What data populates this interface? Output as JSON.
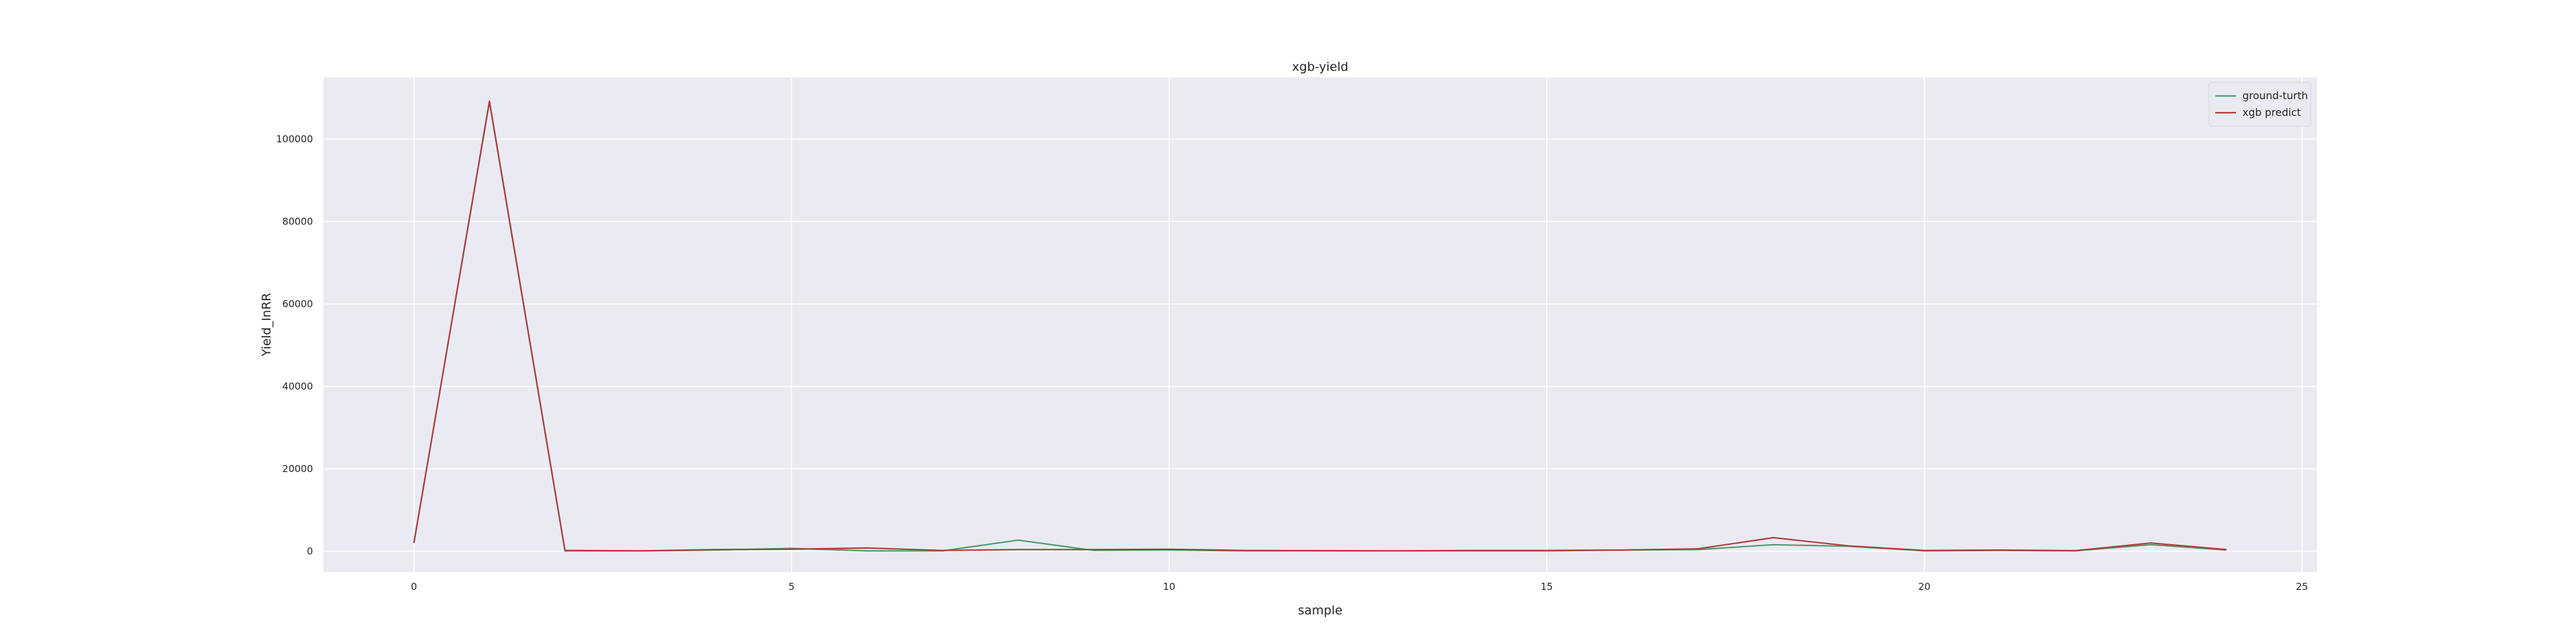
{
  "chart_data": {
    "type": "line",
    "title": "xgb-yield",
    "xlabel": "sample",
    "ylabel": "Yield_InRR",
    "xlim": [
      -1.2,
      25.2
    ],
    "ylim": [
      -5000,
      115000
    ],
    "xticks": [
      0,
      5,
      10,
      15,
      20,
      25
    ],
    "yticks": [
      0,
      20000,
      40000,
      60000,
      80000,
      100000
    ],
    "grid": true,
    "legend_position": "top-right",
    "x": [
      0,
      1,
      2,
      3,
      4,
      5,
      6,
      7,
      8,
      9,
      10,
      11,
      12,
      13,
      14,
      15,
      16,
      17,
      18,
      19,
      20,
      21,
      22,
      23,
      24
    ],
    "series": [
      {
        "name": "ground-turth",
        "color": "#4c9a6a",
        "values": [
          2000,
          109000,
          100,
          100,
          300,
          700,
          100,
          100,
          2700,
          200,
          300,
          100,
          100,
          100,
          100,
          100,
          300,
          400,
          1600,
          1200,
          100,
          200,
          100,
          1600,
          300
        ]
      },
      {
        "name": "xgb predict",
        "color": "#b03a3a",
        "values": [
          2000,
          109200,
          200,
          100,
          400,
          500,
          800,
          200,
          400,
          400,
          500,
          200,
          150,
          100,
          200,
          200,
          300,
          600,
          3300,
          1300,
          200,
          300,
          150,
          2000,
          400
        ]
      }
    ]
  }
}
